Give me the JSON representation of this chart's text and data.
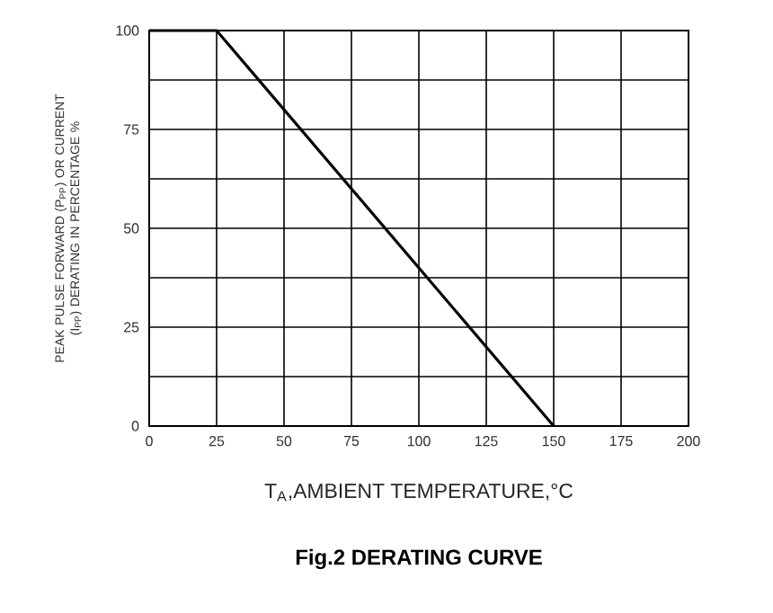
{
  "chart_data": {
    "type": "line",
    "title": "Fig.2 DERATING CURVE",
    "xlabel": "T$_{A}$,AMBIENT TEMPERATURE,°C",
    "ylabel": "PEAK PULSE FORWARD (P$_{PP}$) OR CURRENT (I$_{PP}$) DERATING IN PERCENTAGE %",
    "x": [
      0,
      25,
      150
    ],
    "series": [
      {
        "color": "#000000",
        "values": [
          100,
          100,
          0
        ]
      }
    ],
    "xlim": [
      0,
      200
    ],
    "xticks": [
      0,
      25,
      50,
      75,
      100,
      125,
      150,
      175,
      200
    ],
    "ylim": [
      0,
      100
    ],
    "yticks": [
      0,
      {
        "value": 12.5,
        "label": null
      },
      25,
      {
        "value": 37.5,
        "label": null
      },
      50,
      {
        "value": 62.5,
        "label": null
      },
      75,
      {
        "value": 87.5,
        "label": null
      },
      100
    ],
    "grid": true,
    "marker": "none",
    "line_style": "solid"
  }
}
